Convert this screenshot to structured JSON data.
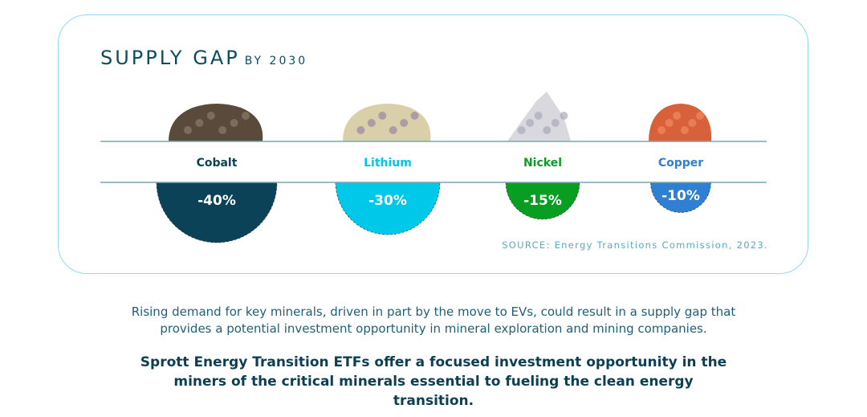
{
  "chart_data": {
    "type": "semicircle-bubble",
    "title": "SUPPLY GAP",
    "subtitle": "BY 2030",
    "categories": [
      "Cobalt",
      "Lithium",
      "Nickel",
      "Copper"
    ],
    "values": [
      -40,
      -30,
      -15,
      -10
    ],
    "labels": [
      "-40%",
      "-30%",
      "-15%",
      "-10%"
    ],
    "colors": [
      "#0b4258",
      "#00c8e8",
      "#089e22",
      "#2f7fd2"
    ],
    "icons": [
      "cobalt-rock",
      "lithium-rock",
      "nickel-rock",
      "copper-rock"
    ],
    "source": "SOURCE: Energy Transitions Commission, 2023."
  },
  "body": {
    "paragraph": "Rising demand for key minerals, driven in part by the move to EVs, could result in a supply gap that provides a potential investment opportunity in mineral exploration and mining companies.",
    "highlight": "Sprott Energy Transition ETFs offer a focused investment opportunity in the miners of the critical minerals essential to fueling the clean energy transition."
  }
}
